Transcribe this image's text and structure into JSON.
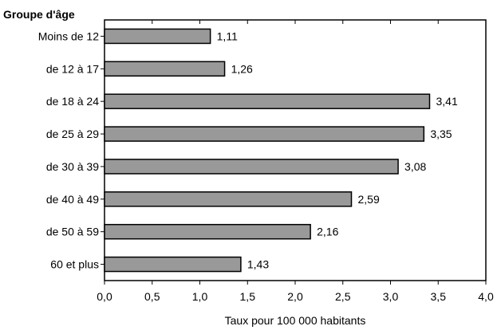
{
  "chart_data": {
    "type": "bar",
    "orientation": "horizontal",
    "title": "Groupe d'âge",
    "xlabel": "Taux pour 100 000 habitants",
    "ylabel": "",
    "categories": [
      "Moins de 12",
      "de 12 à 17",
      "de 18 à 24",
      "de 25 à 29",
      "de 30 à 39",
      "de 40 à 49",
      "de 50 à 59",
      "60 et plus"
    ],
    "values": [
      1.11,
      1.26,
      3.41,
      3.35,
      3.08,
      2.59,
      2.16,
      1.43
    ],
    "value_labels": [
      "1,11",
      "1,26",
      "3,41",
      "3,35",
      "3,08",
      "2,59",
      "2,16",
      "1,43"
    ],
    "xlim": [
      0,
      4.0
    ],
    "x_ticks": [
      0,
      0.5,
      1.0,
      1.5,
      2.0,
      2.5,
      3.0,
      3.5,
      4.0
    ],
    "x_tick_labels": [
      "0,0",
      "0,5",
      "1,0",
      "1,5",
      "2,0",
      "2,5",
      "3,0",
      "3,5",
      "4,0"
    ],
    "grid": false,
    "bar_color": "#999999",
    "bar_stroke": "#000000"
  }
}
